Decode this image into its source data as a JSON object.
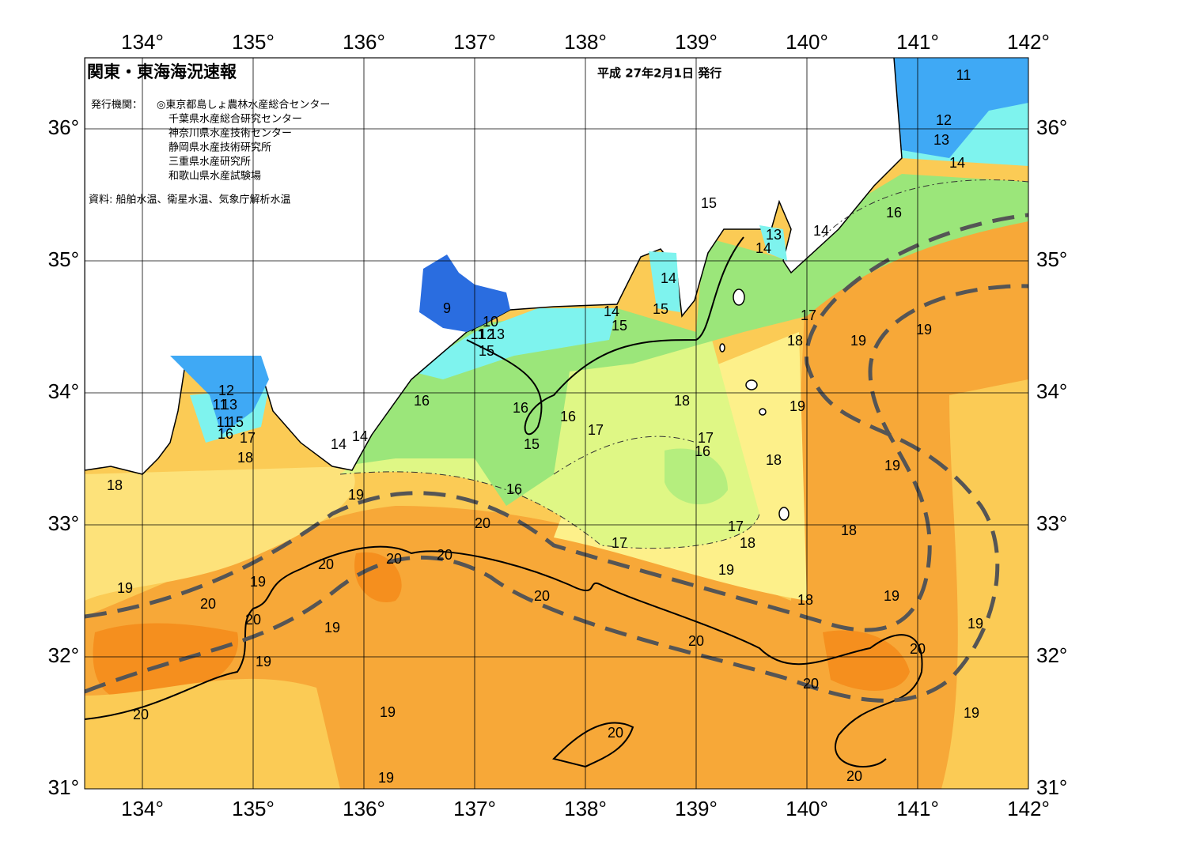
{
  "header": {
    "title": "関東・東海海況速報",
    "issue_date": "平成 27年2月1日 発行",
    "agencies_label": "発行機関：",
    "agencies": [
      "◎東京都島しょ農林水産総合センター",
      "千葉県水産総合研究センター",
      "神奈川県水産技術センター",
      "静岡県水産技術研究所",
      "三重県水産研究所",
      "和歌山県水産試験場"
    ],
    "source": "資料: 船舶水温、衛星水温、気象庁解析水温"
  },
  "map": {
    "longitude_labels": [
      "134°",
      "135°",
      "136°",
      "137°",
      "138°",
      "139°",
      "140°",
      "141°",
      "142°"
    ],
    "latitude_labels": [
      "36°",
      "35°",
      "34°",
      "33°",
      "32°",
      "31°"
    ],
    "contour_labels": [
      "11",
      "12",
      "13",
      "14",
      "15",
      "16",
      "14",
      "13",
      "14",
      "14",
      "15",
      "14",
      "15",
      "9",
      "10",
      "11",
      "12",
      "13",
      "15",
      "17",
      "18",
      "19",
      "19",
      "12",
      "11",
      "13",
      "11",
      "15",
      "16",
      "17",
      "18",
      "14",
      "14",
      "16",
      "16",
      "16",
      "17",
      "15",
      "18",
      "19",
      "17",
      "16",
      "18",
      "19",
      "18",
      "16",
      "19",
      "20",
      "17",
      "18",
      "17",
      "18",
      "20",
      "20",
      "20",
      "19",
      "19",
      "20",
      "19",
      "20",
      "18",
      "19",
      "20",
      "19",
      "19",
      "20",
      "20",
      "19",
      "20",
      "20",
      "19",
      "19",
      "20",
      "19",
      "20"
    ]
  }
}
